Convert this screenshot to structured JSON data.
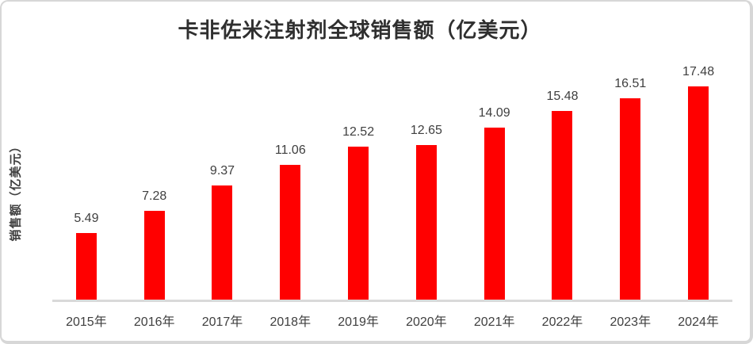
{
  "chart_data": {
    "type": "bar",
    "title": "卡非佐米注射剂全球销售额（亿美元）",
    "ylabel": "销售额（亿美元）",
    "xlabel": "",
    "categories": [
      "2015年",
      "2016年",
      "2017年",
      "2018年",
      "2019年",
      "2020年",
      "2021年",
      "2022年",
      "2023年",
      "2024年"
    ],
    "values": [
      5.49,
      7.28,
      9.37,
      11.06,
      12.52,
      12.65,
      14.09,
      15.48,
      16.51,
      17.48
    ],
    "value_labels": [
      "5.49",
      "7.28",
      "9.37",
      "11.06",
      "12.52",
      "12.65",
      "14.09",
      "15.48",
      "16.51",
      "17.48"
    ],
    "bar_color": "#ff0000",
    "value_label_color": "#3f3f3f",
    "axis_line_color": "#d9d9d9",
    "title_color": "#2f2f2f",
    "grid": false,
    "legend_position": "none",
    "data_labels_shown": true,
    "y_axis_ticks_shown": false,
    "baseline": 0
  }
}
